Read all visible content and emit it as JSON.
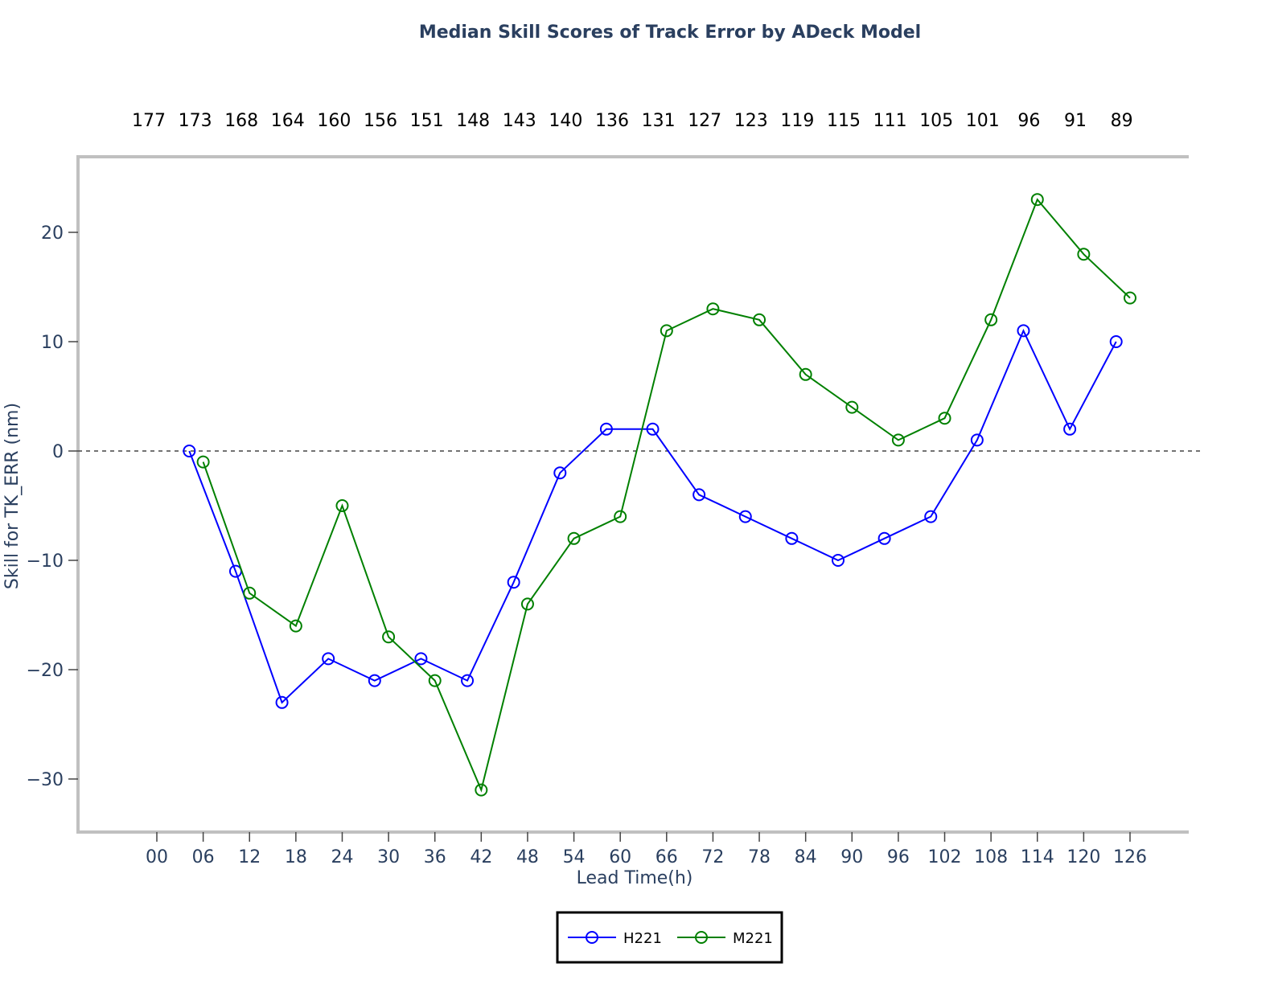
{
  "chart_data": {
    "type": "line",
    "title": "Median Skill Scores of Track Error by ADeck Model",
    "xlabel": "Lead Time(h)",
    "ylabel": "Skill  for TK_ERR (nm)",
    "x_ticks": [
      "00",
      "06",
      "12",
      "18",
      "24",
      "30",
      "36",
      "42",
      "48",
      "54",
      "60",
      "66",
      "72",
      "78",
      "84",
      "90",
      "96",
      "102",
      "108",
      "114",
      "120",
      "126"
    ],
    "counts": [
      "177",
      "173",
      "168",
      "164",
      "160",
      "156",
      "151",
      "148",
      "143",
      "140",
      "136",
      "131",
      "127",
      "123",
      "119",
      "115",
      "111",
      "105",
      "101",
      "96",
      "91",
      "89"
    ],
    "ylim": [
      -35,
      25
    ],
    "y_ticks": [
      -30,
      -20,
      -10,
      0,
      10,
      20
    ],
    "y_tick_labels": [
      "−30",
      "−20",
      "−10",
      "0",
      "10",
      "20"
    ],
    "reference_line": 0,
    "legend_position": "bottom-center",
    "series": [
      {
        "name": "H221",
        "color": "#0000ff",
        "x": [
          4.2,
          10.2,
          16.2,
          22.2,
          28.2,
          34.2,
          40.2,
          46.2,
          52.2,
          58.2,
          64.2,
          70.2,
          76.2,
          82.2,
          88.2,
          94.2,
          100.2,
          106.2,
          112.2,
          118.2,
          124.2
        ],
        "values": [
          0,
          -11,
          -23,
          -19,
          -21,
          -19,
          -21,
          -12,
          -2,
          2,
          2,
          -4,
          -6,
          -8,
          -10,
          -8,
          -6,
          1,
          11,
          2,
          10
        ]
      },
      {
        "name": "M221",
        "color": "#008000",
        "x": [
          6,
          12,
          18,
          24,
          30,
          36,
          42,
          48,
          54,
          60,
          66,
          72,
          78,
          84,
          90,
          96,
          102,
          108,
          114,
          120,
          126
        ],
        "values": [
          -1,
          -13,
          -16,
          -5,
          -17,
          -21,
          -31,
          -14,
          -8,
          -6,
          11,
          13,
          12,
          7,
          4,
          1,
          3,
          12,
          23,
          18,
          14
        ]
      }
    ]
  }
}
